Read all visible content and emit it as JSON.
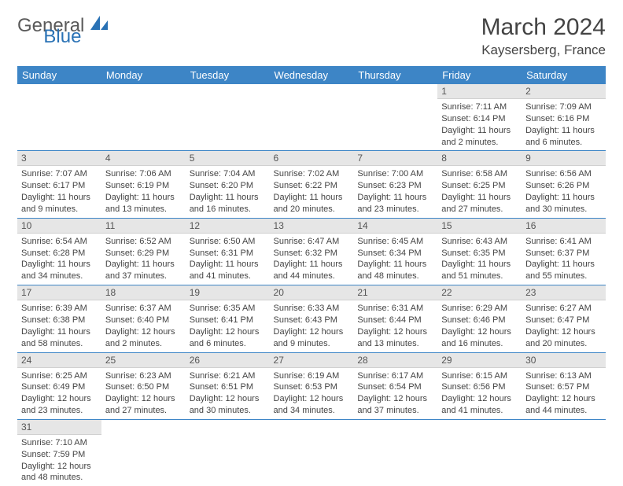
{
  "logo": {
    "text1": "General",
    "text2": "Blue"
  },
  "title": "March 2024",
  "location": "Kaysersberg, France",
  "colors": {
    "header_bg": "#3d85c6",
    "header_text": "#ffffff",
    "daynum_bg": "#e6e6e6",
    "row_border": "#3d85c6",
    "logo_gray": "#5a5a5a",
    "logo_blue": "#2a72b5"
  },
  "weekdays": [
    "Sunday",
    "Monday",
    "Tuesday",
    "Wednesday",
    "Thursday",
    "Friday",
    "Saturday"
  ],
  "first_weekday": 5,
  "days": [
    {
      "n": 1,
      "sr": "7:11 AM",
      "ss": "6:14 PM",
      "dl": "11 hours and 2 minutes."
    },
    {
      "n": 2,
      "sr": "7:09 AM",
      "ss": "6:16 PM",
      "dl": "11 hours and 6 minutes."
    },
    {
      "n": 3,
      "sr": "7:07 AM",
      "ss": "6:17 PM",
      "dl": "11 hours and 9 minutes."
    },
    {
      "n": 4,
      "sr": "7:06 AM",
      "ss": "6:19 PM",
      "dl": "11 hours and 13 minutes."
    },
    {
      "n": 5,
      "sr": "7:04 AM",
      "ss": "6:20 PM",
      "dl": "11 hours and 16 minutes."
    },
    {
      "n": 6,
      "sr": "7:02 AM",
      "ss": "6:22 PM",
      "dl": "11 hours and 20 minutes."
    },
    {
      "n": 7,
      "sr": "7:00 AM",
      "ss": "6:23 PM",
      "dl": "11 hours and 23 minutes."
    },
    {
      "n": 8,
      "sr": "6:58 AM",
      "ss": "6:25 PM",
      "dl": "11 hours and 27 minutes."
    },
    {
      "n": 9,
      "sr": "6:56 AM",
      "ss": "6:26 PM",
      "dl": "11 hours and 30 minutes."
    },
    {
      "n": 10,
      "sr": "6:54 AM",
      "ss": "6:28 PM",
      "dl": "11 hours and 34 minutes."
    },
    {
      "n": 11,
      "sr": "6:52 AM",
      "ss": "6:29 PM",
      "dl": "11 hours and 37 minutes."
    },
    {
      "n": 12,
      "sr": "6:50 AM",
      "ss": "6:31 PM",
      "dl": "11 hours and 41 minutes."
    },
    {
      "n": 13,
      "sr": "6:47 AM",
      "ss": "6:32 PM",
      "dl": "11 hours and 44 minutes."
    },
    {
      "n": 14,
      "sr": "6:45 AM",
      "ss": "6:34 PM",
      "dl": "11 hours and 48 minutes."
    },
    {
      "n": 15,
      "sr": "6:43 AM",
      "ss": "6:35 PM",
      "dl": "11 hours and 51 minutes."
    },
    {
      "n": 16,
      "sr": "6:41 AM",
      "ss": "6:37 PM",
      "dl": "11 hours and 55 minutes."
    },
    {
      "n": 17,
      "sr": "6:39 AM",
      "ss": "6:38 PM",
      "dl": "11 hours and 58 minutes."
    },
    {
      "n": 18,
      "sr": "6:37 AM",
      "ss": "6:40 PM",
      "dl": "12 hours and 2 minutes."
    },
    {
      "n": 19,
      "sr": "6:35 AM",
      "ss": "6:41 PM",
      "dl": "12 hours and 6 minutes."
    },
    {
      "n": 20,
      "sr": "6:33 AM",
      "ss": "6:43 PM",
      "dl": "12 hours and 9 minutes."
    },
    {
      "n": 21,
      "sr": "6:31 AM",
      "ss": "6:44 PM",
      "dl": "12 hours and 13 minutes."
    },
    {
      "n": 22,
      "sr": "6:29 AM",
      "ss": "6:46 PM",
      "dl": "12 hours and 16 minutes."
    },
    {
      "n": 23,
      "sr": "6:27 AM",
      "ss": "6:47 PM",
      "dl": "12 hours and 20 minutes."
    },
    {
      "n": 24,
      "sr": "6:25 AM",
      "ss": "6:49 PM",
      "dl": "12 hours and 23 minutes."
    },
    {
      "n": 25,
      "sr": "6:23 AM",
      "ss": "6:50 PM",
      "dl": "12 hours and 27 minutes."
    },
    {
      "n": 26,
      "sr": "6:21 AM",
      "ss": "6:51 PM",
      "dl": "12 hours and 30 minutes."
    },
    {
      "n": 27,
      "sr": "6:19 AM",
      "ss": "6:53 PM",
      "dl": "12 hours and 34 minutes."
    },
    {
      "n": 28,
      "sr": "6:17 AM",
      "ss": "6:54 PM",
      "dl": "12 hours and 37 minutes."
    },
    {
      "n": 29,
      "sr": "6:15 AM",
      "ss": "6:56 PM",
      "dl": "12 hours and 41 minutes."
    },
    {
      "n": 30,
      "sr": "6:13 AM",
      "ss": "6:57 PM",
      "dl": "12 hours and 44 minutes."
    },
    {
      "n": 31,
      "sr": "7:10 AM",
      "ss": "7:59 PM",
      "dl": "12 hours and 48 minutes."
    }
  ],
  "labels": {
    "sunrise": "Sunrise:",
    "sunset": "Sunset:",
    "daylight": "Daylight:"
  }
}
